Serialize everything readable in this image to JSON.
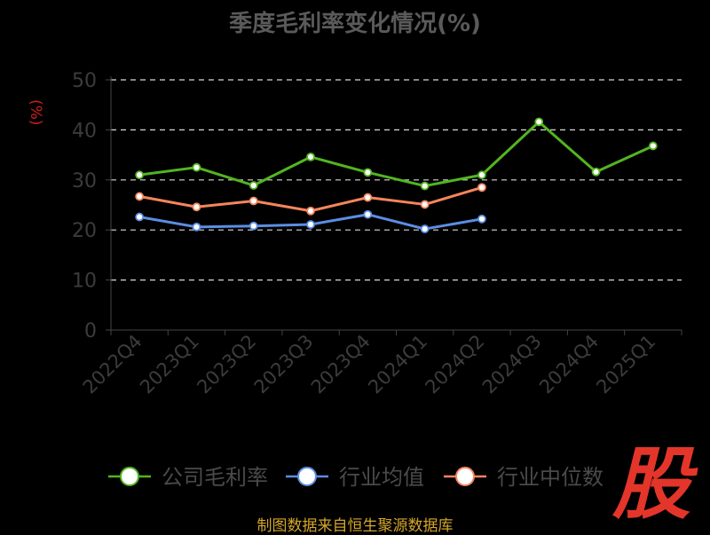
{
  "chart_data": {
    "type": "line",
    "title": "季度毛利率变化情况(%)",
    "ylabel": "(%)",
    "xlabel": "",
    "categories": [
      "2022Q4",
      "2023Q1",
      "2023Q2",
      "2023Q3",
      "2023Q4",
      "2024Q1",
      "2024Q2",
      "2024Q3",
      "2024Q4",
      "2025Q1"
    ],
    "ylim": [
      0,
      50
    ],
    "yticks": [
      0,
      10,
      20,
      30,
      40,
      50
    ],
    "grid": true,
    "legend_position": "bottom",
    "series": [
      {
        "name": "公司毛利率",
        "color": "#52b520",
        "values": [
          31.0,
          32.5,
          28.9,
          34.6,
          31.5,
          28.8,
          31.0,
          41.6,
          31.6,
          36.8
        ]
      },
      {
        "name": "行业均值",
        "color": "#5b8de3",
        "values": [
          22.6,
          20.6,
          20.8,
          21.1,
          23.1,
          20.2,
          22.2,
          null,
          null,
          null
        ]
      },
      {
        "name": "行业中位数",
        "color": "#f5855d",
        "values": [
          26.7,
          24.6,
          25.8,
          23.8,
          26.5,
          25.1,
          28.5,
          null,
          null,
          null
        ]
      }
    ]
  },
  "source_text": "制图数据来自恒生聚源数据库",
  "logo_text": "股"
}
